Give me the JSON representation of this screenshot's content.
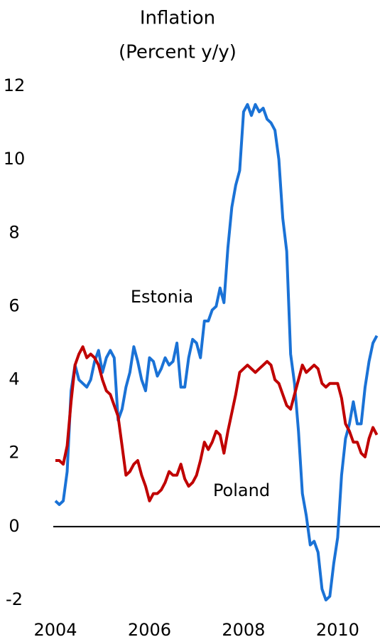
{
  "chart_data": {
    "type": "line",
    "title": "Inflation",
    "subtitle": "(Percent y/y)",
    "xlim": [
      2004,
      2010.9
    ],
    "xticks": [
      2004,
      2006,
      2008,
      2010
    ],
    "ylim": [
      -2,
      12
    ],
    "yticks": [
      -2,
      0,
      2,
      4,
      6,
      8,
      10,
      12
    ],
    "x": [
      2004,
      2004.083,
      2004.167,
      2004.25,
      2004.333,
      2004.417,
      2004.5,
      2004.583,
      2004.667,
      2004.75,
      2004.833,
      2004.917,
      2005,
      2005.083,
      2005.167,
      2005.25,
      2005.333,
      2005.417,
      2005.5,
      2005.583,
      2005.667,
      2005.75,
      2005.833,
      2005.917,
      2006,
      2006.083,
      2006.167,
      2006.25,
      2006.333,
      2006.417,
      2006.5,
      2006.583,
      2006.667,
      2006.75,
      2006.833,
      2006.917,
      2007,
      2007.083,
      2007.167,
      2007.25,
      2007.333,
      2007.417,
      2007.5,
      2007.583,
      2007.667,
      2007.75,
      2007.833,
      2007.917,
      2008,
      2008.083,
      2008.167,
      2008.25,
      2008.333,
      2008.417,
      2008.5,
      2008.583,
      2008.667,
      2008.75,
      2008.833,
      2008.917,
      2009,
      2009.083,
      2009.167,
      2009.25,
      2009.333,
      2009.417,
      2009.5,
      2009.583,
      2009.667,
      2009.75,
      2009.833,
      2009.917,
      2010,
      2010.083,
      2010.167,
      2010.25,
      2010.333,
      2010.417,
      2010.5,
      2010.583,
      2010.667,
      2010.75,
      2010.833
    ],
    "series": [
      {
        "name": "Estonia",
        "color": "#1a72d6",
        "values": [
          0.7,
          0.6,
          0.7,
          1.5,
          3.7,
          4.4,
          4.0,
          3.9,
          3.8,
          4.0,
          4.5,
          4.8,
          4.2,
          4.6,
          4.8,
          4.6,
          2.9,
          3.2,
          3.8,
          4.2,
          4.9,
          4.5,
          4.0,
          3.7,
          4.6,
          4.5,
          4.1,
          4.3,
          4.6,
          4.4,
          4.5,
          5.0,
          3.8,
          3.8,
          4.6,
          5.1,
          5.0,
          4.6,
          5.6,
          5.6,
          5.9,
          6.0,
          6.5,
          6.1,
          7.6,
          8.7,
          9.3,
          9.7,
          11.3,
          11.5,
          11.2,
          11.5,
          11.3,
          11.4,
          11.1,
          11.0,
          10.8,
          10.0,
          8.4,
          7.5,
          4.7,
          3.9,
          2.6,
          0.9,
          0.3,
          -0.5,
          -0.4,
          -0.7,
          -1.7,
          -2.0,
          -1.9,
          -1.0,
          -0.3,
          1.4,
          2.4,
          2.8,
          3.4,
          2.8,
          2.8,
          3.8,
          4.5,
          5.0,
          5.2
        ]
      },
      {
        "name": "Poland",
        "color": "#c00000",
        "values": [
          1.8,
          1.8,
          1.7,
          2.2,
          3.4,
          4.4,
          4.7,
          4.9,
          4.6,
          4.7,
          4.6,
          4.4,
          4.0,
          3.7,
          3.6,
          3.3,
          3.0,
          2.2,
          1.4,
          1.5,
          1.7,
          1.8,
          1.4,
          1.1,
          0.7,
          0.9,
          0.9,
          1.0,
          1.2,
          1.5,
          1.4,
          1.4,
          1.7,
          1.3,
          1.1,
          1.2,
          1.4,
          1.8,
          2.3,
          2.1,
          2.3,
          2.6,
          2.5,
          2.0,
          2.6,
          3.1,
          3.6,
          4.2,
          4.3,
          4.4,
          4.3,
          4.2,
          4.3,
          4.4,
          4.5,
          4.4,
          4.0,
          3.9,
          3.6,
          3.3,
          3.2,
          3.6,
          4.0,
          4.4,
          4.2,
          4.3,
          4.4,
          4.3,
          3.9,
          3.8,
          3.9,
          3.9,
          3.9,
          3.5,
          2.8,
          2.6,
          2.3,
          2.3,
          2.0,
          1.9,
          2.4,
          2.7,
          2.5
        ]
      }
    ]
  }
}
